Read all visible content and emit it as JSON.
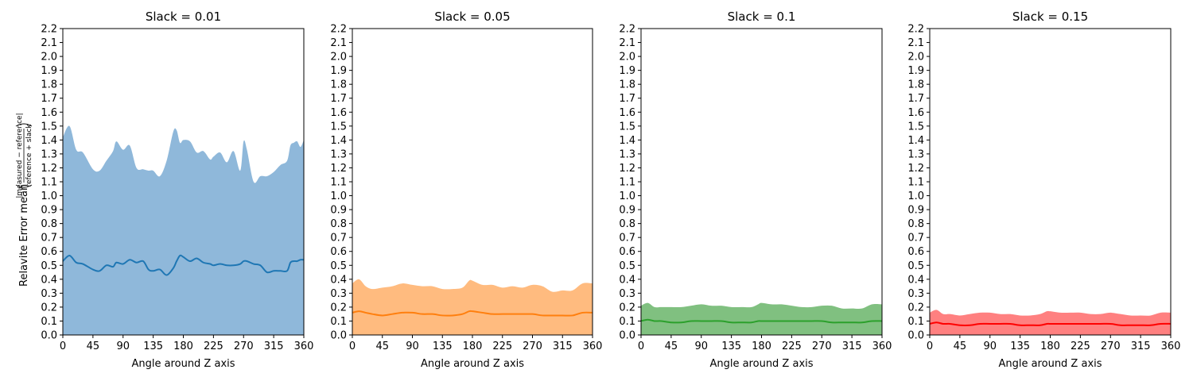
{
  "chart_data": [
    {
      "type": "area",
      "title": "Slack = 0.01",
      "xlabel": "Angle around Z axis",
      "ylabel": "Relavite Error mean(|measured − reference| / reference + slack)",
      "xlim": [
        0,
        360
      ],
      "ylim": [
        0,
        2.2
      ],
      "xticks": [
        "0",
        "45",
        "90",
        "135",
        "180",
        "225",
        "270",
        "315",
        "360"
      ],
      "yticks": [
        "0.0",
        "0.1",
        "0.2",
        "0.3",
        "0.4",
        "0.5",
        "0.6",
        "0.7",
        "0.8",
        "0.9",
        "1.0",
        "1.1",
        "1.2",
        "1.3",
        "1.4",
        "1.5",
        "1.6",
        "1.7",
        "1.8",
        "1.9",
        "2.0",
        "2.1",
        "2.2"
      ],
      "colors": {
        "line": "#1f77b4",
        "fill": "#8fb8da"
      },
      "x": [
        0,
        10,
        20,
        30,
        45,
        55,
        65,
        75,
        80,
        90,
        100,
        110,
        120,
        128,
        135,
        145,
        155,
        165,
        170,
        175,
        180,
        190,
        200,
        210,
        220,
        225,
        235,
        245,
        255,
        265,
        270,
        275,
        285,
        295,
        305,
        315,
        325,
        335,
        340,
        345,
        350,
        355,
        360
      ],
      "series": [
        {
          "role": "mean",
          "values": [
            0.53,
            0.57,
            0.52,
            0.51,
            0.47,
            0.46,
            0.5,
            0.49,
            0.52,
            0.51,
            0.54,
            0.52,
            0.53,
            0.47,
            0.46,
            0.47,
            0.43,
            0.48,
            0.53,
            0.57,
            0.56,
            0.53,
            0.55,
            0.52,
            0.51,
            0.5,
            0.51,
            0.5,
            0.5,
            0.51,
            0.53,
            0.53,
            0.51,
            0.5,
            0.45,
            0.46,
            0.46,
            0.46,
            0.52,
            0.53,
            0.53,
            0.54,
            0.54
          ]
        },
        {
          "role": "upper",
          "values": [
            1.42,
            1.5,
            1.33,
            1.31,
            1.19,
            1.18,
            1.25,
            1.32,
            1.39,
            1.33,
            1.36,
            1.2,
            1.19,
            1.18,
            1.18,
            1.14,
            1.25,
            1.46,
            1.47,
            1.38,
            1.4,
            1.39,
            1.31,
            1.32,
            1.26,
            1.28,
            1.31,
            1.24,
            1.32,
            1.18,
            1.39,
            1.33,
            1.1,
            1.14,
            1.14,
            1.17,
            1.22,
            1.25,
            1.36,
            1.38,
            1.39,
            1.35,
            1.4
          ]
        },
        {
          "role": "lower",
          "values": [
            0,
            0,
            0,
            0,
            0,
            0,
            0,
            0,
            0,
            0,
            0,
            0,
            0,
            0,
            0,
            0,
            0,
            0,
            0,
            0,
            0,
            0,
            0,
            0,
            0,
            0,
            0,
            0,
            0,
            0,
            0,
            0,
            0,
            0,
            0,
            0,
            0,
            0,
            0,
            0,
            0,
            0,
            0
          ]
        }
      ]
    },
    {
      "type": "area",
      "title": "Slack = 0.05",
      "xlabel": "Angle around Z axis",
      "xlim": [
        0,
        360
      ],
      "ylim": [
        0,
        2.2
      ],
      "xticks": [
        "0",
        "45",
        "90",
        "135",
        "180",
        "225",
        "270",
        "315",
        "360"
      ],
      "yticks": [
        "0.0",
        "0.1",
        "0.2",
        "0.3",
        "0.4",
        "0.5",
        "0.6",
        "0.7",
        "0.8",
        "0.9",
        "1.0",
        "1.1",
        "1.2",
        "1.3",
        "1.4",
        "1.5",
        "1.6",
        "1.7",
        "1.8",
        "1.9",
        "2.0",
        "2.1",
        "2.2"
      ],
      "colors": {
        "line": "#ff7f0e",
        "fill": "#ffbb7f"
      },
      "x": [
        0,
        10,
        20,
        30,
        45,
        60,
        75,
        90,
        105,
        120,
        135,
        150,
        165,
        175,
        180,
        195,
        210,
        225,
        240,
        255,
        270,
        285,
        300,
        315,
        330,
        345,
        360
      ],
      "series": [
        {
          "role": "mean",
          "values": [
            0.16,
            0.17,
            0.16,
            0.15,
            0.14,
            0.15,
            0.16,
            0.16,
            0.15,
            0.15,
            0.14,
            0.14,
            0.15,
            0.17,
            0.17,
            0.16,
            0.15,
            0.15,
            0.15,
            0.15,
            0.15,
            0.14,
            0.14,
            0.14,
            0.14,
            0.16,
            0.16
          ]
        },
        {
          "role": "upper",
          "values": [
            0.37,
            0.4,
            0.35,
            0.33,
            0.34,
            0.35,
            0.37,
            0.36,
            0.35,
            0.35,
            0.33,
            0.33,
            0.34,
            0.39,
            0.39,
            0.36,
            0.36,
            0.34,
            0.35,
            0.34,
            0.36,
            0.35,
            0.31,
            0.32,
            0.32,
            0.37,
            0.37
          ]
        },
        {
          "role": "lower",
          "values": [
            0,
            0,
            0,
            0,
            0,
            0,
            0,
            0,
            0,
            0,
            0,
            0,
            0,
            0,
            0,
            0,
            0,
            0,
            0,
            0,
            0,
            0,
            0,
            0,
            0,
            0,
            0
          ]
        }
      ]
    },
    {
      "type": "area",
      "title": "Slack = 0.1",
      "xlabel": "Angle around Z axis",
      "xlim": [
        0,
        360
      ],
      "ylim": [
        0,
        2.2
      ],
      "xticks": [
        "0",
        "45",
        "90",
        "135",
        "180",
        "225",
        "270",
        "315",
        "360"
      ],
      "yticks": [
        "0.0",
        "0.1",
        "0.2",
        "0.3",
        "0.4",
        "0.5",
        "0.6",
        "0.7",
        "0.8",
        "0.9",
        "1.0",
        "1.1",
        "1.2",
        "1.3",
        "1.4",
        "1.5",
        "1.6",
        "1.7",
        "1.8",
        "1.9",
        "2.0",
        "2.1",
        "2.2"
      ],
      "colors": {
        "line": "#2ca02c",
        "fill": "#80c080"
      },
      "x": [
        0,
        10,
        20,
        30,
        45,
        60,
        75,
        90,
        105,
        120,
        135,
        150,
        165,
        175,
        180,
        195,
        210,
        225,
        240,
        255,
        270,
        285,
        300,
        315,
        330,
        345,
        360
      ],
      "series": [
        {
          "role": "mean",
          "values": [
            0.1,
            0.11,
            0.1,
            0.1,
            0.09,
            0.09,
            0.1,
            0.1,
            0.1,
            0.1,
            0.09,
            0.09,
            0.09,
            0.1,
            0.1,
            0.1,
            0.1,
            0.1,
            0.1,
            0.1,
            0.1,
            0.09,
            0.09,
            0.09,
            0.09,
            0.1,
            0.1
          ]
        },
        {
          "role": "upper",
          "values": [
            0.21,
            0.23,
            0.2,
            0.2,
            0.2,
            0.2,
            0.21,
            0.22,
            0.21,
            0.21,
            0.2,
            0.2,
            0.2,
            0.22,
            0.23,
            0.22,
            0.22,
            0.21,
            0.2,
            0.2,
            0.21,
            0.21,
            0.19,
            0.19,
            0.19,
            0.22,
            0.22
          ]
        },
        {
          "role": "lower",
          "values": [
            0,
            0,
            0,
            0,
            0,
            0,
            0,
            0,
            0,
            0,
            0,
            0,
            0,
            0,
            0,
            0,
            0,
            0,
            0,
            0,
            0,
            0,
            0,
            0,
            0,
            0,
            0
          ]
        }
      ]
    },
    {
      "type": "area",
      "title": "Slack = 0.15",
      "xlabel": "Angle around Z axis",
      "xlim": [
        0,
        360
      ],
      "ylim": [
        0,
        2.2
      ],
      "xticks": [
        "0",
        "45",
        "90",
        "135",
        "180",
        "225",
        "270",
        "315",
        "360"
      ],
      "yticks": [
        "0.0",
        "0.1",
        "0.2",
        "0.3",
        "0.4",
        "0.5",
        "0.6",
        "0.7",
        "0.8",
        "0.9",
        "1.0",
        "1.1",
        "1.2",
        "1.3",
        "1.4",
        "1.5",
        "1.6",
        "1.7",
        "1.8",
        "1.9",
        "2.0",
        "2.1",
        "2.2"
      ],
      "colors": {
        "line": "#ff0000",
        "fill": "#ff8080"
      },
      "x": [
        0,
        10,
        20,
        30,
        45,
        60,
        75,
        90,
        105,
        120,
        135,
        150,
        165,
        175,
        180,
        195,
        210,
        225,
        240,
        255,
        270,
        285,
        300,
        315,
        330,
        345,
        360
      ],
      "series": [
        {
          "role": "mean",
          "values": [
            0.08,
            0.09,
            0.08,
            0.08,
            0.07,
            0.07,
            0.08,
            0.08,
            0.08,
            0.08,
            0.07,
            0.07,
            0.07,
            0.08,
            0.08,
            0.08,
            0.08,
            0.08,
            0.08,
            0.08,
            0.08,
            0.07,
            0.07,
            0.07,
            0.07,
            0.08,
            0.08
          ]
        },
        {
          "role": "upper",
          "values": [
            0.16,
            0.18,
            0.15,
            0.15,
            0.14,
            0.15,
            0.16,
            0.16,
            0.15,
            0.15,
            0.14,
            0.14,
            0.15,
            0.17,
            0.17,
            0.16,
            0.16,
            0.16,
            0.15,
            0.15,
            0.16,
            0.15,
            0.14,
            0.14,
            0.14,
            0.16,
            0.16
          ]
        },
        {
          "role": "lower",
          "values": [
            0,
            0,
            0,
            0,
            0,
            0,
            0,
            0,
            0,
            0,
            0,
            0,
            0,
            0,
            0,
            0,
            0,
            0,
            0,
            0,
            0,
            0,
            0,
            0,
            0,
            0,
            0
          ]
        }
      ]
    }
  ],
  "ylabel_parts": {
    "prefix": "Relavite Error mean",
    "numerator": "|measured − reference|",
    "denominator": "reference + slack"
  }
}
